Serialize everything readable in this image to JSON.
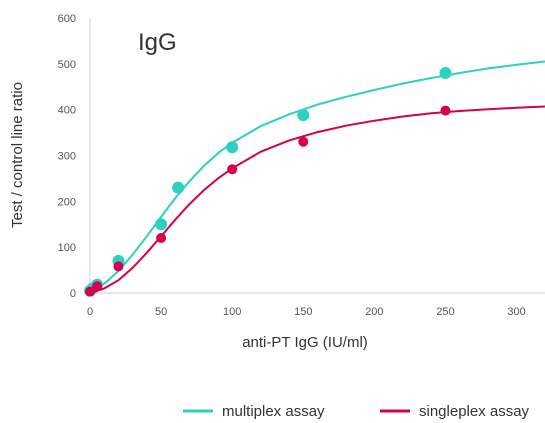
{
  "chart_data": {
    "type": "scatter",
    "title": "IgG",
    "xlabel": "anti-PT IgG (IU/ml)",
    "ylabel": "Test / control line ratio",
    "xlim": [
      0,
      320
    ],
    "ylim": [
      0,
      600
    ],
    "x_ticks": [
      0,
      50,
      100,
      150,
      200,
      250,
      300
    ],
    "y_ticks": [
      0,
      100,
      200,
      300,
      400,
      500,
      600
    ],
    "grid": false,
    "legend_position": "bottom-right",
    "series": [
      {
        "name": "multiplex assay",
        "color": "#2fd0c0",
        "points": [
          [
            0,
            5
          ],
          [
            2,
            10
          ],
          [
            5,
            18
          ],
          [
            20,
            70
          ],
          [
            50,
            150
          ],
          [
            62,
            230
          ],
          [
            100,
            318
          ],
          [
            150,
            388
          ],
          [
            250,
            480
          ]
        ],
        "curve": [
          [
            0,
            4
          ],
          [
            10,
            20
          ],
          [
            20,
            48
          ],
          [
            30,
            84
          ],
          [
            40,
            124
          ],
          [
            50,
            166
          ],
          [
            60,
            207
          ],
          [
            70,
            244
          ],
          [
            80,
            277
          ],
          [
            90,
            305
          ],
          [
            100,
            328
          ],
          [
            120,
            364
          ],
          [
            140,
            390
          ],
          [
            160,
            411
          ],
          [
            180,
            428
          ],
          [
            200,
            443
          ],
          [
            220,
            457
          ],
          [
            240,
            469
          ],
          [
            260,
            480
          ],
          [
            280,
            490
          ],
          [
            300,
            498
          ],
          [
            320,
            505
          ]
        ]
      },
      {
        "name": "singleplex assay",
        "color": "#d6004f",
        "points": [
          [
            0,
            3
          ],
          [
            5,
            15
          ],
          [
            20,
            58
          ],
          [
            50,
            120
          ],
          [
            100,
            270
          ],
          [
            150,
            330
          ],
          [
            250,
            398
          ]
        ],
        "curve": [
          [
            0,
            0
          ],
          [
            10,
            10
          ],
          [
            20,
            28
          ],
          [
            30,
            55
          ],
          [
            40,
            88
          ],
          [
            50,
            124
          ],
          [
            60,
            160
          ],
          [
            70,
            194
          ],
          [
            80,
            224
          ],
          [
            90,
            250
          ],
          [
            100,
            272
          ],
          [
            120,
            308
          ],
          [
            140,
            333
          ],
          [
            160,
            351
          ],
          [
            180,
            365
          ],
          [
            200,
            376
          ],
          [
            220,
            385
          ],
          [
            240,
            392
          ],
          [
            260,
            397
          ],
          [
            280,
            401
          ],
          [
            300,
            404
          ],
          [
            320,
            407
          ]
        ]
      }
    ]
  }
}
